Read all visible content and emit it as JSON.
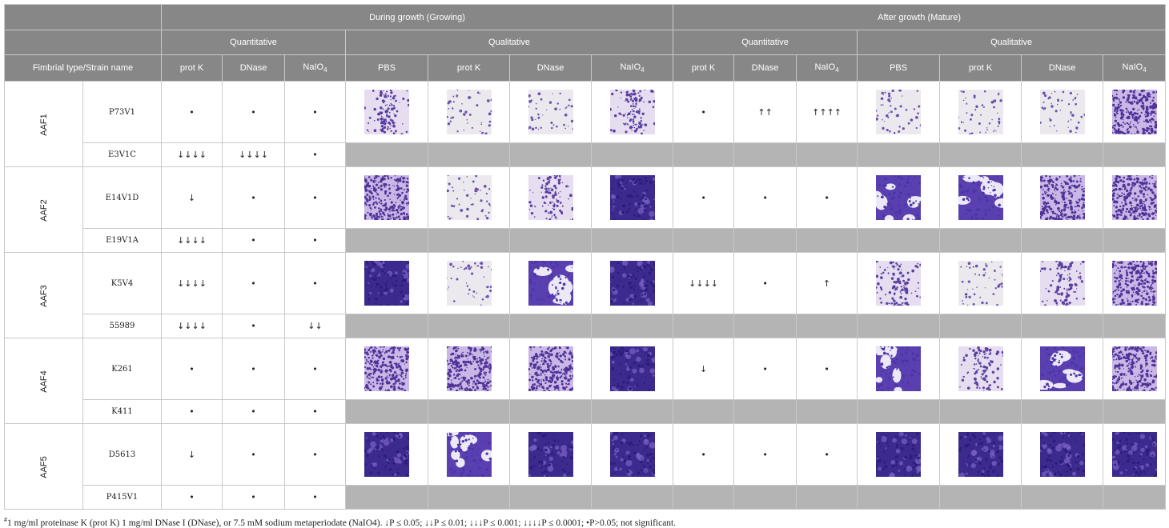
{
  "header": {
    "growing": "During growth (Growing)",
    "mature": "After growth (Mature)",
    "quantitative": "Quantitative",
    "qualitative": "Qualitative",
    "fimbrial_col": "Fimbrial type/Strain name",
    "cols_quant": [
      "prot K",
      "DNase",
      "NaIO4"
    ],
    "cols_qual": [
      "PBS",
      "prot K",
      "DNase",
      "NaIO4"
    ]
  },
  "groups": [
    {
      "type": "AAF1",
      "main": {
        "strain": "P73V1",
        "grow": [
          "•",
          "•",
          "•"
        ],
        "mature": [
          "•",
          "↑↑",
          "↑↑↑↑"
        ],
        "grow_imgs": [
          "cluster",
          "sparse",
          "sparse",
          "cluster"
        ],
        "mature_imgs": [
          "sparse",
          "sparse",
          "sparse",
          "dense"
        ]
      },
      "sub": {
        "strain": "E3V1C",
        "grow": [
          "↓↓↓↓",
          "↓↓↓↓",
          "•"
        ]
      }
    },
    {
      "type": "AAF2",
      "main": {
        "strain": "E14V1D",
        "grow": [
          "↓",
          "•",
          "•"
        ],
        "mature": [
          "•",
          "•",
          "•"
        ],
        "grow_imgs": [
          "dense",
          "sparse",
          "cluster",
          "dark"
        ],
        "mature_imgs": [
          "web",
          "web",
          "dense",
          "dense"
        ]
      },
      "sub": {
        "strain": "E19V1A",
        "grow": [
          "↓↓↓↓",
          "•",
          "•"
        ]
      }
    },
    {
      "type": "AAF3",
      "main": {
        "strain": "K5V4",
        "grow": [
          "↓↓↓↓",
          "•",
          "•"
        ],
        "mature": [
          "↓↓↓↓",
          "•",
          "↑"
        ],
        "grow_imgs": [
          "dark",
          "sparse",
          "web",
          "dark"
        ],
        "mature_imgs": [
          "cluster",
          "sparse",
          "cluster",
          "dense"
        ]
      },
      "sub": {
        "strain": "55989",
        "grow": [
          "↓↓↓↓",
          "•",
          "↓↓"
        ]
      }
    },
    {
      "type": "AAF4",
      "main": {
        "strain": "K261",
        "grow": [
          "•",
          "•",
          "•"
        ],
        "mature": [
          "↓",
          "•",
          "•"
        ],
        "grow_imgs": [
          "dense",
          "dense",
          "dense",
          "dark"
        ],
        "mature_imgs": [
          "web",
          "cluster",
          "web",
          "dense"
        ]
      },
      "sub": {
        "strain": "K411",
        "grow": [
          "•",
          "•",
          "•"
        ]
      }
    },
    {
      "type": "AAF5",
      "main": {
        "strain": "D5613",
        "grow": [
          "↓",
          "•",
          "•"
        ],
        "mature": [
          "•",
          "•",
          "•"
        ],
        "grow_imgs": [
          "dark",
          "web",
          "dark",
          "dark"
        ],
        "mature_imgs": [
          "dark",
          "dark",
          "dark",
          "dark"
        ]
      },
      "sub": {
        "strain": "P415V1",
        "grow": [
          "•",
          "•",
          "•"
        ]
      }
    }
  ],
  "footnote": {
    "mark": "#",
    "text": "1 mg/ml proteinase K (prot K) 1 mg/ml DNase I (DNase), or 7.5 mM sodium metaperiodate (NaIO4). ↓P ≤ 0.05; ↓↓P ≤ 0.01; ↓↓↓P ≤ 0.001; ↓↓↓↓P ≤ 0.0001; •P>0.05; not significant."
  },
  "colors": {
    "header_bg": "#878787",
    "grey_fill": "#b4b4b4",
    "stain_violet": "#5a3ea0",
    "stain_light": "#e8e2f0"
  }
}
